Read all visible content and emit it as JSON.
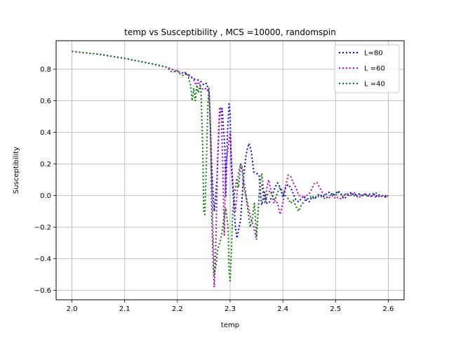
{
  "chart_data": {
    "type": "line",
    "title": "temp vs Susceptibility , MCS =10000, randomspin",
    "xlabel": "temp",
    "ylabel": "Susceptibility",
    "xlim": [
      1.97,
      2.63
    ],
    "ylim": [
      -0.66,
      0.98
    ],
    "xticks": [
      2.0,
      2.1,
      2.2,
      2.3,
      2.4,
      2.5,
      2.6
    ],
    "xtick_labels": [
      "2.0",
      "2.1",
      "2.2",
      "2.3",
      "2.4",
      "2.5",
      "2.6"
    ],
    "yticks": [
      -0.6,
      -0.4,
      -0.2,
      0.0,
      0.2,
      0.4,
      0.6,
      0.8
    ],
    "ytick_labels": [
      "−0.6",
      "−0.4",
      "−0.2",
      "0.0",
      "0.2",
      "0.4",
      "0.6",
      "0.8"
    ],
    "grid": true,
    "legend_position": "top-right",
    "series": [
      {
        "name": "L=80",
        "color": "#0000ff",
        "line_style": "dotted",
        "points": [
          [
            2.0,
            0.912
          ],
          [
            2.05,
            0.895
          ],
          [
            2.1,
            0.868
          ],
          [
            2.15,
            0.835
          ],
          [
            2.18,
            0.812
          ],
          [
            2.2,
            0.785
          ],
          [
            2.22,
            0.77
          ],
          [
            2.23,
            0.74
          ],
          [
            2.235,
            0.735
          ],
          [
            2.24,
            0.73
          ],
          [
            2.245,
            0.72
          ],
          [
            2.25,
            0.7
          ],
          [
            2.255,
            0.71
          ],
          [
            2.26,
            0.66
          ],
          [
            2.262,
            0.5
          ],
          [
            2.265,
            0.2
          ],
          [
            2.268,
            0.0
          ],
          [
            2.27,
            -0.1
          ],
          [
            2.275,
            0.1
          ],
          [
            2.28,
            0.52
          ],
          [
            2.285,
            0.55
          ],
          [
            2.29,
            0.3
          ],
          [
            2.292,
            0.0
          ],
          [
            2.295,
            0.4
          ],
          [
            2.298,
            0.58
          ],
          [
            2.3,
            0.52
          ],
          [
            2.302,
            0.2
          ],
          [
            2.305,
            0.05
          ],
          [
            2.31,
            -0.2
          ],
          [
            2.313,
            -0.27
          ],
          [
            2.316,
            -0.22
          ],
          [
            2.32,
            -0.15
          ],
          [
            2.325,
            0.1
          ],
          [
            2.33,
            0.25
          ],
          [
            2.333,
            0.3
          ],
          [
            2.336,
            0.33
          ],
          [
            2.34,
            0.28
          ],
          [
            2.345,
            0.15
          ],
          [
            2.35,
            0.14
          ],
          [
            2.355,
            0.13
          ],
          [
            2.358,
            0.0
          ],
          [
            2.36,
            -0.06
          ],
          [
            2.365,
            0.02
          ],
          [
            2.37,
            -0.05
          ],
          [
            2.375,
            -0.04
          ],
          [
            2.38,
            0.0
          ],
          [
            2.385,
            0.05
          ],
          [
            2.39,
            0.08
          ],
          [
            2.395,
            0.05
          ],
          [
            2.4,
            -0.01
          ],
          [
            2.405,
            0.05
          ],
          [
            2.41,
            0.07
          ],
          [
            2.415,
            0.05
          ],
          [
            2.42,
            0.01
          ],
          [
            2.425,
            -0.03
          ],
          [
            2.43,
            -0.04
          ],
          [
            2.435,
            -0.02
          ],
          [
            2.44,
            0.0
          ],
          [
            2.445,
            -0.03
          ],
          [
            2.45,
            -0.04
          ],
          [
            2.455,
            -0.01
          ],
          [
            2.46,
            -0.02
          ],
          [
            2.465,
            0.0
          ],
          [
            2.47,
            0.01
          ],
          [
            2.475,
            -0.01
          ],
          [
            2.48,
            0.0
          ],
          [
            2.485,
            0.02
          ],
          [
            2.49,
            0.02
          ],
          [
            2.495,
            0.0
          ],
          [
            2.5,
            0.01
          ],
          [
            2.505,
            0.03
          ],
          [
            2.51,
            0.01
          ],
          [
            2.515,
            -0.02
          ],
          [
            2.52,
            -0.01
          ],
          [
            2.525,
            0.01
          ],
          [
            2.53,
            0.02
          ],
          [
            2.535,
            0.0
          ],
          [
            2.54,
            0.01
          ],
          [
            2.545,
            0.01
          ],
          [
            2.55,
            0.0
          ],
          [
            2.555,
            0.01
          ],
          [
            2.56,
            0.0
          ],
          [
            2.565,
            -0.01
          ],
          [
            2.57,
            0.0
          ],
          [
            2.575,
            0.01
          ],
          [
            2.58,
            -0.01
          ],
          [
            2.585,
            0.0
          ],
          [
            2.59,
            0.0
          ],
          [
            2.595,
            -0.01
          ],
          [
            2.6,
            -0.01
          ]
        ]
      },
      {
        "name": "L =60",
        "color": "#bf00bf",
        "line_style": "dotted",
        "points": [
          [
            2.0,
            0.912
          ],
          [
            2.05,
            0.895
          ],
          [
            2.1,
            0.868
          ],
          [
            2.15,
            0.835
          ],
          [
            2.18,
            0.812
          ],
          [
            2.2,
            0.785
          ],
          [
            2.21,
            0.775
          ],
          [
            2.22,
            0.76
          ],
          [
            2.23,
            0.74
          ],
          [
            2.235,
            0.7
          ],
          [
            2.24,
            0.72
          ],
          [
            2.245,
            0.68
          ],
          [
            2.25,
            0.67
          ],
          [
            2.255,
            0.68
          ],
          [
            2.26,
            0.65
          ],
          [
            2.263,
            0.4
          ],
          [
            2.265,
            -0.1
          ],
          [
            2.268,
            -0.45
          ],
          [
            2.27,
            -0.58
          ],
          [
            2.273,
            -0.3
          ],
          [
            2.276,
            0.2
          ],
          [
            2.28,
            0.56
          ],
          [
            2.283,
            0.55
          ],
          [
            2.286,
            0.2
          ],
          [
            2.289,
            -0.25
          ],
          [
            2.292,
            0.2
          ],
          [
            2.296,
            0.3
          ],
          [
            2.3,
            0.4
          ],
          [
            2.303,
            0.2
          ],
          [
            2.306,
            0.05
          ],
          [
            2.31,
            -0.1
          ],
          [
            2.313,
            0.0
          ],
          [
            2.316,
            0.15
          ],
          [
            2.32,
            0.2
          ],
          [
            2.323,
            0.15
          ],
          [
            2.326,
            0.05
          ],
          [
            2.33,
            0.0
          ],
          [
            2.333,
            -0.05
          ],
          [
            2.336,
            -0.1
          ],
          [
            2.34,
            -0.15
          ],
          [
            2.345,
            -0.2
          ],
          [
            2.35,
            -0.28
          ],
          [
            2.353,
            -0.12
          ],
          [
            2.356,
            0.05
          ],
          [
            2.36,
            0.07
          ],
          [
            2.363,
            0.0
          ],
          [
            2.366,
            -0.03
          ],
          [
            2.37,
            0.05
          ],
          [
            2.373,
            0.1
          ],
          [
            2.376,
            0.05
          ],
          [
            2.38,
            0.0
          ],
          [
            2.383,
            -0.05
          ],
          [
            2.386,
            -0.03
          ],
          [
            2.39,
            -0.05
          ],
          [
            2.395,
            -0.12
          ],
          [
            2.4,
            -0.05
          ],
          [
            2.405,
            0.05
          ],
          [
            2.41,
            0.13
          ],
          [
            2.415,
            0.12
          ],
          [
            2.42,
            0.08
          ],
          [
            2.425,
            0.05
          ],
          [
            2.43,
            0.0
          ],
          [
            2.435,
            0.0
          ],
          [
            2.44,
            -0.02
          ],
          [
            2.445,
            0.0
          ],
          [
            2.45,
            0.01
          ],
          [
            2.455,
            0.04
          ],
          [
            2.46,
            0.08
          ],
          [
            2.465,
            0.08
          ],
          [
            2.47,
            0.05
          ],
          [
            2.475,
            0.02
          ],
          [
            2.48,
            0.0
          ],
          [
            2.485,
            -0.02
          ],
          [
            2.49,
            -0.01
          ],
          [
            2.495,
            0.0
          ],
          [
            2.5,
            -0.02
          ],
          [
            2.505,
            -0.01
          ],
          [
            2.51,
            -0.02
          ],
          [
            2.515,
            0.0
          ],
          [
            2.52,
            0.01
          ],
          [
            2.525,
            0.0
          ],
          [
            2.53,
            0.01
          ],
          [
            2.535,
            0.02
          ],
          [
            2.54,
            0.0
          ],
          [
            2.545,
            -0.01
          ],
          [
            2.55,
            0.0
          ],
          [
            2.555,
            0.0
          ],
          [
            2.56,
            0.01
          ],
          [
            2.565,
            0.0
          ],
          [
            2.57,
            0.0
          ],
          [
            2.575,
            -0.01
          ],
          [
            2.58,
            0.0
          ],
          [
            2.585,
            -0.01
          ],
          [
            2.59,
            0.0
          ],
          [
            2.595,
            -0.01
          ],
          [
            2.6,
            0.0
          ]
        ]
      },
      {
        "name": "L =40",
        "color": "#007f00",
        "line_style": "dotted",
        "points": [
          [
            2.0,
            0.912
          ],
          [
            2.05,
            0.895
          ],
          [
            2.1,
            0.868
          ],
          [
            2.15,
            0.835
          ],
          [
            2.18,
            0.812
          ],
          [
            2.19,
            0.78
          ],
          [
            2.2,
            0.79
          ],
          [
            2.205,
            0.77
          ],
          [
            2.21,
            0.76
          ],
          [
            2.215,
            0.78
          ],
          [
            2.22,
            0.76
          ],
          [
            2.225,
            0.7
          ],
          [
            2.228,
            0.6
          ],
          [
            2.231,
            0.68
          ],
          [
            2.234,
            0.6
          ],
          [
            2.237,
            0.7
          ],
          [
            2.24,
            0.65
          ],
          [
            2.243,
            0.7
          ],
          [
            2.245,
            0.65
          ],
          [
            2.248,
            0.3
          ],
          [
            2.25,
            -0.1
          ],
          [
            2.252,
            -0.12
          ],
          [
            2.255,
            0.2
          ],
          [
            2.258,
            0.6
          ],
          [
            2.26,
            0.68
          ],
          [
            2.262,
            0.5
          ],
          [
            2.264,
            0.2
          ],
          [
            2.266,
            0.0
          ],
          [
            2.268,
            -0.3
          ],
          [
            2.27,
            -0.5
          ],
          [
            2.273,
            -0.45
          ],
          [
            2.276,
            -0.35
          ],
          [
            2.28,
            -0.3
          ],
          [
            2.284,
            -0.25
          ],
          [
            2.288,
            -0.15
          ],
          [
            2.292,
            -0.08
          ],
          [
            2.296,
            -0.2
          ],
          [
            2.298,
            -0.48
          ],
          [
            2.3,
            -0.54
          ],
          [
            2.302,
            -0.4
          ],
          [
            2.305,
            -0.1
          ],
          [
            2.308,
            0.0
          ],
          [
            2.312,
            0.1
          ],
          [
            2.316,
            0.05
          ],
          [
            2.32,
            0.2
          ],
          [
            2.323,
            0.18
          ],
          [
            2.326,
            0.1
          ],
          [
            2.33,
            0.0
          ],
          [
            2.334,
            -0.1
          ],
          [
            2.338,
            -0.2
          ],
          [
            2.342,
            -0.15
          ],
          [
            2.346,
            -0.05
          ],
          [
            2.35,
            -0.26
          ],
          [
            2.353,
            -0.1
          ],
          [
            2.356,
            0.05
          ],
          [
            2.36,
            0.14
          ],
          [
            2.363,
            0.05
          ],
          [
            2.366,
            -0.05
          ],
          [
            2.37,
            0.0
          ],
          [
            2.375,
            0.03
          ],
          [
            2.38,
            0.0
          ],
          [
            2.385,
            -0.03
          ],
          [
            2.39,
            0.02
          ],
          [
            2.395,
            0.05
          ],
          [
            2.4,
            0.02
          ],
          [
            2.405,
            0.0
          ],
          [
            2.41,
            -0.02
          ],
          [
            2.415,
            -0.05
          ],
          [
            2.42,
            -0.03
          ],
          [
            2.425,
            -0.07
          ],
          [
            2.43,
            -0.1
          ],
          [
            2.435,
            -0.06
          ],
          [
            2.44,
            -0.04
          ],
          [
            2.445,
            -0.02
          ],
          [
            2.45,
            -0.02
          ],
          [
            2.455,
            0.0
          ],
          [
            2.46,
            -0.02
          ],
          [
            2.465,
            -0.01
          ],
          [
            2.47,
            0.0
          ],
          [
            2.475,
            -0.01
          ],
          [
            2.48,
            -0.02
          ],
          [
            2.485,
            -0.01
          ],
          [
            2.49,
            0.0
          ],
          [
            2.495,
            0.01
          ],
          [
            2.5,
            0.0
          ],
          [
            2.505,
            0.02
          ],
          [
            2.51,
            0.01
          ],
          [
            2.515,
            0.0
          ],
          [
            2.52,
            0.01
          ],
          [
            2.525,
            0.01
          ],
          [
            2.53,
            0.0
          ],
          [
            2.535,
            0.0
          ],
          [
            2.54,
            -0.01
          ],
          [
            2.545,
            0.0
          ],
          [
            2.55,
            0.01
          ],
          [
            2.555,
            0.0
          ],
          [
            2.56,
            0.0
          ],
          [
            2.565,
            0.01
          ],
          [
            2.57,
            0.01
          ],
          [
            2.575,
            0.02
          ],
          [
            2.58,
            0.01
          ],
          [
            2.585,
            0.0
          ],
          [
            2.59,
            0.0
          ],
          [
            2.595,
            0.0
          ],
          [
            2.6,
            -0.01
          ]
        ]
      }
    ]
  }
}
